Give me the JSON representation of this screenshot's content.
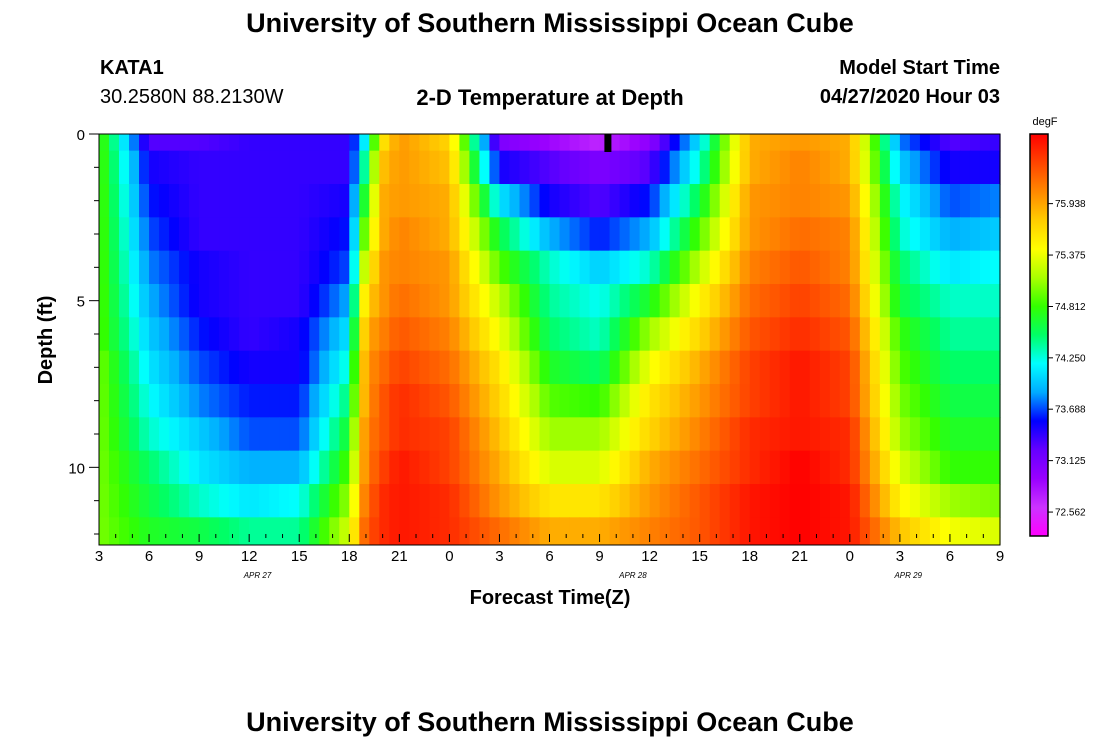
{
  "page": {
    "title": "University of Southern Mississippi Ocean Cube",
    "footer_title": "University of Southern Mississippi Ocean Cube",
    "station_id": "KATA1",
    "station_coords": "30.2580N 88.2130W",
    "plot_title": "2-D Temperature at Depth",
    "model_start_label": "Model Start Time",
    "model_start_value": "04/27/2020 Hour 03"
  },
  "chart_data": {
    "type": "heatmap",
    "title": "2-D Temperature at Depth",
    "xlabel": "Forecast Time(Z)",
    "ylabel": "Depth (ft)",
    "ylim": [
      0,
      12
    ],
    "xlim_hours": [
      0,
      54
    ],
    "y_ticks": [
      "0",
      "5",
      "10"
    ],
    "x_tick_labels": [
      "3",
      "6",
      "9",
      "12",
      "15",
      "18",
      "21",
      "0",
      "3",
      "6",
      "9",
      "12",
      "15",
      "18",
      "21",
      "0",
      "3",
      "6",
      "9"
    ],
    "date_labels": [
      {
        "text": "APR  27",
        "hour": 9.5
      },
      {
        "text": "APR  28",
        "hour": 32
      },
      {
        "text": "APR  29",
        "hour": 48.5
      }
    ],
    "current_time_hour": 30.5,
    "colorbar": {
      "unit": "degF",
      "min": 72.3,
      "max": 76.7,
      "tick_values": [
        72.562,
        73.125,
        73.688,
        74.25,
        74.812,
        75.375,
        75.938
      ],
      "tick_labels": [
        "72.562",
        "73.125",
        "73.688",
        "74.250",
        "74.812",
        "75.375",
        "75.938"
      ],
      "colors": [
        "#ff00ff",
        "#cc33ff",
        "#9900ff",
        "#6600ff",
        "#0000ff",
        "#00aaff",
        "#00ffff",
        "#00ff66",
        "#33ff00",
        "#aaff00",
        "#ffff00",
        "#ffcc00",
        "#ff8800",
        "#ff4400",
        "#ff0000"
      ]
    },
    "depth_levels_ft": [
      0,
      1,
      2,
      3,
      4,
      5,
      6,
      7,
      8,
      9,
      10,
      11,
      12
    ],
    "time_keyframes_hours": [
      0,
      3,
      6,
      9,
      12,
      15,
      16,
      17,
      18,
      21,
      24,
      27,
      30,
      33,
      36,
      39,
      42,
      45,
      48,
      51,
      54
    ],
    "temperature_keyframes_degF": [
      [
        74.9,
        73.3,
        73.3,
        73.4,
        73.4,
        73.4,
        74.2,
        75.6,
        76.0,
        75.7,
        73.1,
        72.9,
        72.7,
        73.0,
        74.1,
        75.9,
        76.0,
        75.9,
        73.8,
        73.3,
        73.4
      ],
      [
        74.9,
        73.5,
        73.4,
        73.4,
        73.4,
        73.4,
        74.5,
        75.8,
        76.0,
        75.8,
        73.5,
        73.3,
        73.1,
        73.3,
        74.3,
        75.9,
        76.1,
        75.9,
        74.0,
        73.5,
        73.5
      ],
      [
        74.9,
        73.6,
        73.4,
        73.4,
        73.4,
        73.5,
        74.8,
        75.9,
        76.0,
        75.9,
        74.1,
        73.5,
        73.3,
        73.6,
        74.6,
        76.0,
        76.1,
        76.0,
        74.2,
        73.7,
        73.8
      ],
      [
        74.9,
        73.7,
        73.4,
        73.4,
        73.4,
        73.6,
        75.1,
        75.9,
        76.1,
        75.9,
        74.6,
        73.9,
        73.6,
        73.9,
        74.9,
        76.0,
        76.2,
        76.1,
        74.3,
        73.9,
        74.0
      ],
      [
        74.9,
        73.8,
        73.5,
        73.4,
        73.4,
        73.7,
        75.4,
        76.0,
        76.1,
        76.0,
        74.9,
        74.3,
        74.0,
        74.3,
        75.2,
        76.1,
        76.3,
        76.1,
        74.5,
        74.1,
        74.2
      ],
      [
        74.9,
        73.9,
        73.5,
        73.4,
        73.4,
        73.9,
        75.7,
        76.0,
        76.2,
        76.0,
        75.2,
        74.4,
        74.2,
        74.7,
        75.5,
        76.2,
        76.4,
        76.2,
        74.6,
        74.3,
        74.3
      ],
      [
        74.9,
        74.0,
        73.6,
        73.4,
        73.5,
        74.1,
        75.9,
        76.1,
        76.3,
        76.1,
        75.4,
        74.5,
        74.3,
        75.1,
        75.7,
        76.3,
        76.5,
        76.3,
        74.8,
        74.4,
        74.4
      ],
      [
        75.0,
        74.1,
        73.7,
        73.5,
        73.5,
        74.3,
        76.0,
        76.2,
        76.4,
        76.2,
        75.6,
        74.7,
        74.5,
        75.4,
        75.9,
        76.4,
        76.6,
        76.4,
        74.9,
        74.5,
        74.5
      ],
      [
        75.0,
        74.2,
        73.8,
        73.6,
        73.6,
        74.5,
        76.0,
        76.3,
        76.5,
        76.3,
        75.7,
        74.9,
        74.8,
        75.6,
        76.0,
        76.4,
        76.6,
        76.4,
        75.0,
        74.6,
        74.6
      ],
      [
        75.0,
        74.3,
        74.0,
        73.7,
        73.7,
        74.7,
        76.1,
        76.3,
        76.5,
        76.4,
        75.8,
        75.1,
        75.1,
        75.7,
        76.1,
        76.5,
        76.6,
        76.5,
        75.1,
        74.7,
        74.7
      ],
      [
        75.0,
        74.5,
        74.1,
        73.9,
        73.9,
        74.9,
        76.1,
        76.4,
        76.6,
        76.4,
        75.9,
        75.3,
        75.3,
        75.9,
        76.2,
        76.5,
        76.7,
        76.5,
        75.3,
        74.8,
        74.8
      ],
      [
        75.0,
        74.6,
        74.3,
        74.1,
        74.2,
        75.1,
        76.2,
        76.5,
        76.6,
        76.5,
        76.0,
        75.6,
        75.6,
        76.0,
        76.3,
        76.6,
        76.7,
        76.6,
        75.5,
        75.1,
        75.0
      ],
      [
        75.0,
        74.7,
        74.6,
        74.4,
        74.4,
        75.3,
        76.3,
        76.5,
        76.6,
        76.5,
        76.2,
        75.9,
        75.9,
        76.1,
        76.3,
        76.6,
        76.7,
        76.6,
        75.8,
        75.4,
        75.3
      ]
    ]
  }
}
